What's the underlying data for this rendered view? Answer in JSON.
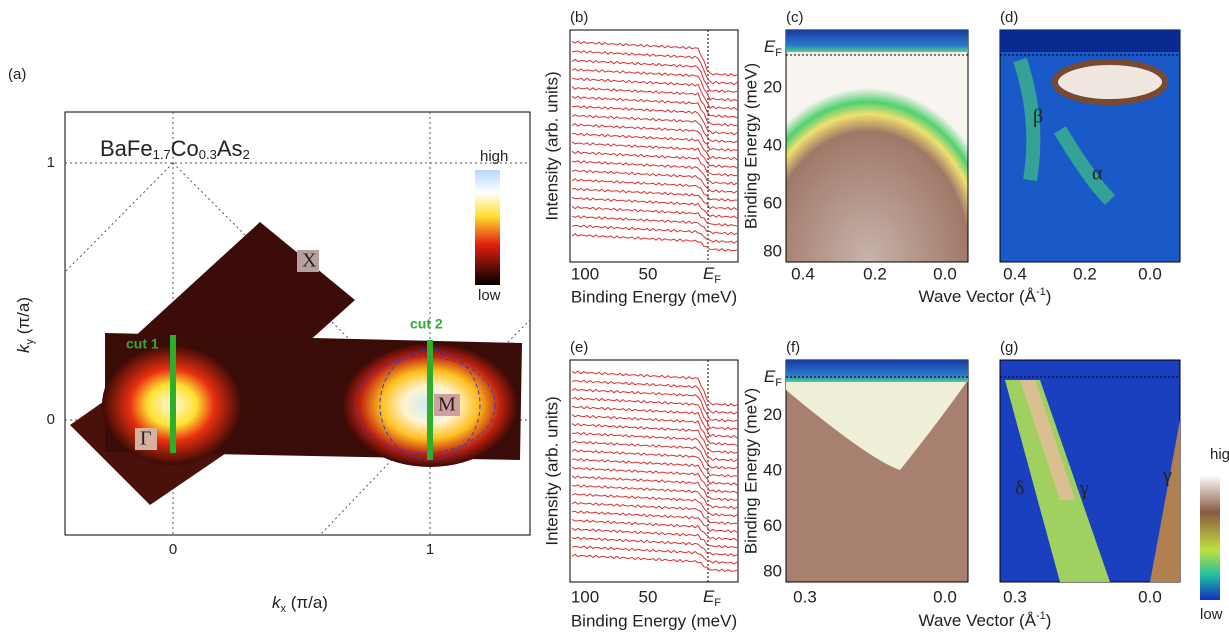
{
  "panels": {
    "a": {
      "label": "(a)",
      "title": [
        "BaFe",
        "1.7",
        "Co",
        "0.3",
        "As",
        "2"
      ],
      "xlabel": [
        "k",
        "x",
        " (π/a)"
      ],
      "ylabel": [
        "k",
        "y",
        " (π/a)"
      ],
      "xticks": [
        "0",
        "1"
      ],
      "yticks": [
        "1",
        "0"
      ],
      "colorbar": [
        "high",
        "low"
      ],
      "markers": [
        "X",
        "M",
        "Γ"
      ],
      "cuts": [
        "cut 1",
        "cut 2"
      ]
    },
    "b": {
      "label": "(b)",
      "ylabel": "Intensity (arb. units)",
      "xlabel": "Binding Energy (meV)",
      "xticks": [
        "100",
        "50",
        [
          "E",
          "F"
        ]
      ]
    },
    "c": {
      "label": "(c)",
      "ylabel": "Binding Energy (meV)",
      "yticks": [
        [
          "E",
          "F"
        ],
        "20",
        "40",
        "60",
        "80"
      ],
      "xticks": [
        "0.4",
        "0.2",
        "0.0"
      ]
    },
    "d": {
      "label": "(d)",
      "xticks": [
        "0.4",
        "0.2",
        "0.0"
      ],
      "bands": [
        "β",
        "α"
      ]
    },
    "top_xlabel": "Wave Vector (Å",
    "top_xlabel_sup": "-1",
    "top_xlabel_end": ")",
    "e": {
      "label": "(e)",
      "ylabel": "Intensity (arb. units)",
      "xlabel": "Binding Energy (meV)",
      "xticks": [
        "100",
        "50",
        [
          "E",
          "F"
        ]
      ]
    },
    "f": {
      "label": "(f)",
      "ylabel": "Binding Energy (meV)",
      "yticks": [
        [
          "E",
          "F"
        ],
        "20",
        "40",
        "60",
        "80"
      ],
      "xticks": [
        "0.3",
        "0.0"
      ]
    },
    "g": {
      "label": "(g)",
      "xticks": [
        "0.3",
        "0.0"
      ],
      "bands": [
        "δ",
        "γ",
        "γ"
      ],
      "colorbar": [
        "high",
        "low"
      ]
    },
    "bottom_xlabel": "Wave Vector (Å",
    "bottom_xlabel_sup": "-1",
    "bottom_xlabel_end": ")"
  }
}
